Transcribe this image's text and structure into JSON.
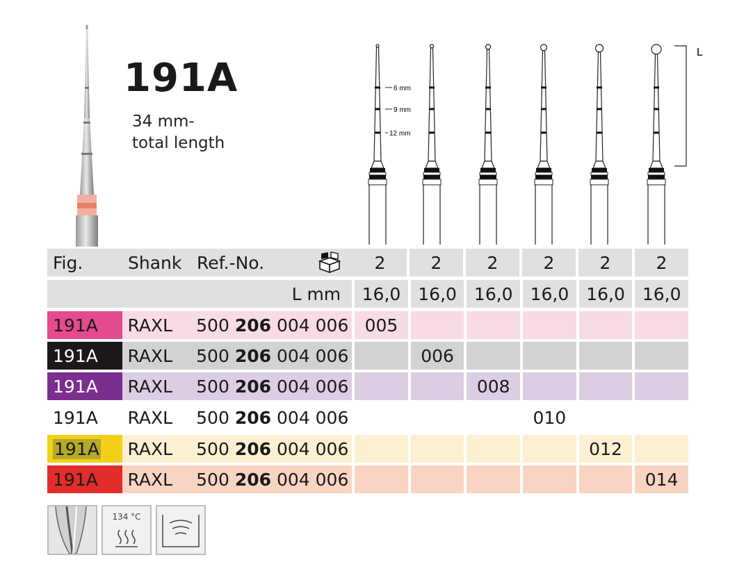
{
  "product": {
    "title": "191A",
    "subtitle_line1": "34 mm-",
    "subtitle_line2": "total length"
  },
  "diagram": {
    "depth_marks": [
      "6 mm",
      "9 mm",
      "12 mm"
    ],
    "length_label": "L"
  },
  "table": {
    "headers": {
      "fig": "Fig.",
      "shank": "Shank",
      "ref": "Ref.-No.",
      "pack_icon": "package-icon"
    },
    "pack_qty": [
      "2",
      "2",
      "2",
      "2",
      "2",
      "2"
    ],
    "length_label": "L mm",
    "lengths": [
      "16,0",
      "16,0",
      "16,0",
      "16,0",
      "16,0",
      "16,0"
    ],
    "rows": [
      {
        "fig": "191A",
        "shank": "RAXL",
        "ref_a": "500",
        "ref_b": "206",
        "ref_c": "004 006",
        "size": "005",
        "col": 0,
        "fig_bg": "#e54a8e",
        "row_bg": "#f8dbe6",
        "fig_color": "#1a1a1a"
      },
      {
        "fig": "191A",
        "shank": "RAXL",
        "ref_a": "500",
        "ref_b": "206",
        "ref_c": "004 006",
        "size": "006",
        "col": 1,
        "fig_bg": "#1c1818",
        "row_bg": "#d2d2d2",
        "fig_color": "#ffffff"
      },
      {
        "fig": "191A",
        "shank": "RAXL",
        "ref_a": "500",
        "ref_b": "206",
        "ref_c": "004 006",
        "size": "008",
        "col": 2,
        "fig_bg": "#7a2e8e",
        "row_bg": "#dccde3",
        "fig_color": "#ffffff"
      },
      {
        "fig": "191A",
        "shank": "RAXL",
        "ref_a": "500",
        "ref_b": "206",
        "ref_c": "004 006",
        "size": "010",
        "col": 3,
        "fig_bg": "#ffffff",
        "row_bg": "#ffffff",
        "fig_color": "#1a1a1a"
      },
      {
        "fig": "191A",
        "shank": "RAXL",
        "ref_a": "500",
        "ref_b": "206",
        "ref_c": "004 006",
        "size": "012",
        "col": 4,
        "fig_bg": "#f4cf18",
        "row_bg": "#fdf0d2",
        "fig_color": "#1a1a1a"
      },
      {
        "fig": "191A",
        "shank": "RAXL",
        "ref_a": "500",
        "ref_b": "206",
        "ref_c": "004 006",
        "size": "014",
        "col": 5,
        "fig_bg": "#e22c2c",
        "row_bg": "#f9d4c2",
        "fig_color": "#1a1a1a"
      }
    ]
  },
  "icons": {
    "canal": "root-canal-icon",
    "sterilize_label": "134 °C",
    "sterilize": "sterilizer-icon",
    "ultrasonic": "ultrasonic-bath-icon"
  }
}
